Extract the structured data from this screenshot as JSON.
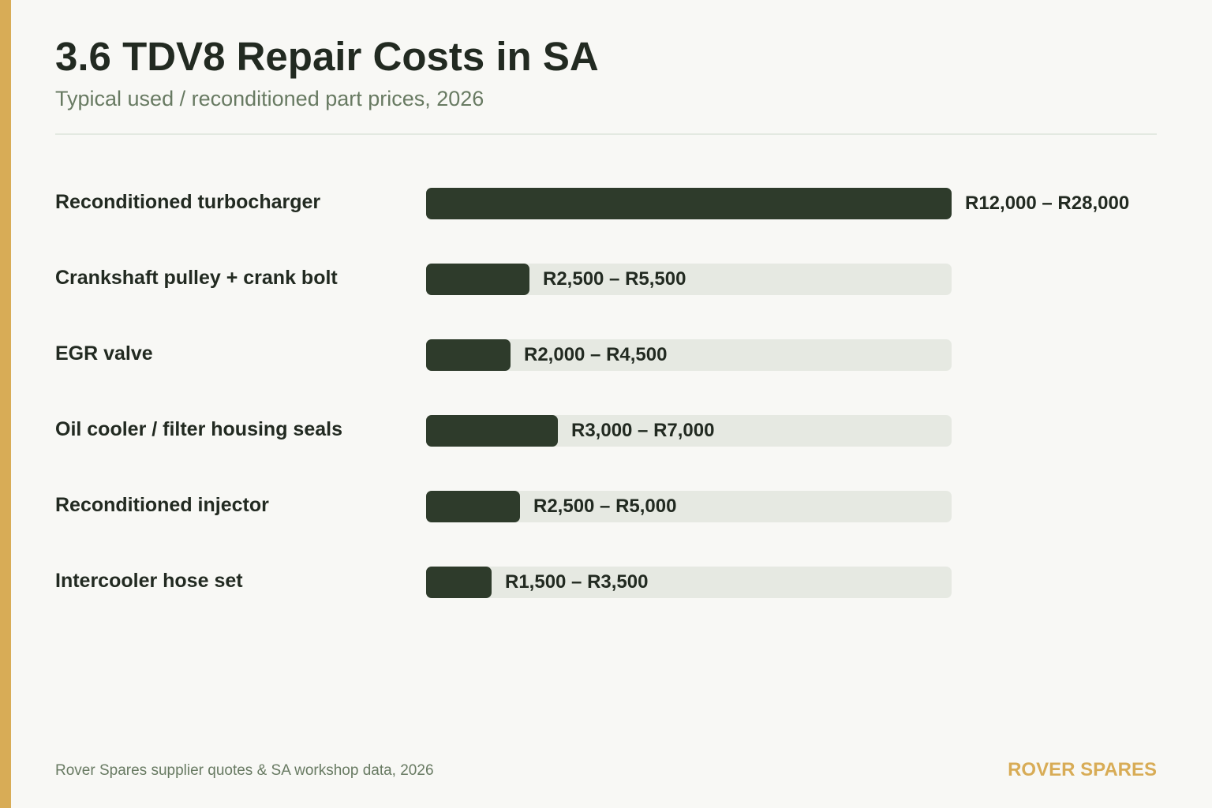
{
  "title": "3.6 TDV8 Repair Costs in SA",
  "subtitle": "Typical used / reconditioned part prices, 2026",
  "footer": {
    "source": "Rover Spares supplier quotes & SA workshop data, 2026",
    "brand": "ROVER SPARES"
  },
  "colors": {
    "accent": "#d8ac56",
    "bar_fill": "#2e3b2b",
    "bar_track": "#e6e9e2",
    "background": "#f8f8f5",
    "text": "#222a21",
    "muted_text": "#687a62",
    "brand": "#d8ac56"
  },
  "chart_data": {
    "type": "bar",
    "orientation": "horizontal",
    "title": "3.6 TDV8 Repair Costs in SA",
    "subtitle": "Typical used / reconditioned part prices, 2026",
    "grid": false,
    "legend": "none",
    "xlim": [
      0,
      28000
    ],
    "categories": [
      "Reconditioned turbocharger",
      "Crankshaft pulley + crank bolt",
      "EGR valve",
      "Oil cooler / filter housing seals",
      "Reconditioned injector",
      "Intercooler hose set"
    ],
    "ranges": [
      [
        12000,
        28000
      ],
      [
        2500,
        5500
      ],
      [
        2000,
        4500
      ],
      [
        3000,
        7000
      ],
      [
        2500,
        5000
      ],
      [
        1500,
        3500
      ]
    ],
    "values": [
      28000,
      5500,
      4500,
      7000,
      5000,
      3500
    ],
    "value_labels": [
      "R12,000 – R28,000",
      "R2,500 – R5,500",
      "R2,000 – R4,500",
      "R3,000 – R7,000",
      "R2,500 – R5,000",
      "R1,500 – R3,500"
    ]
  }
}
